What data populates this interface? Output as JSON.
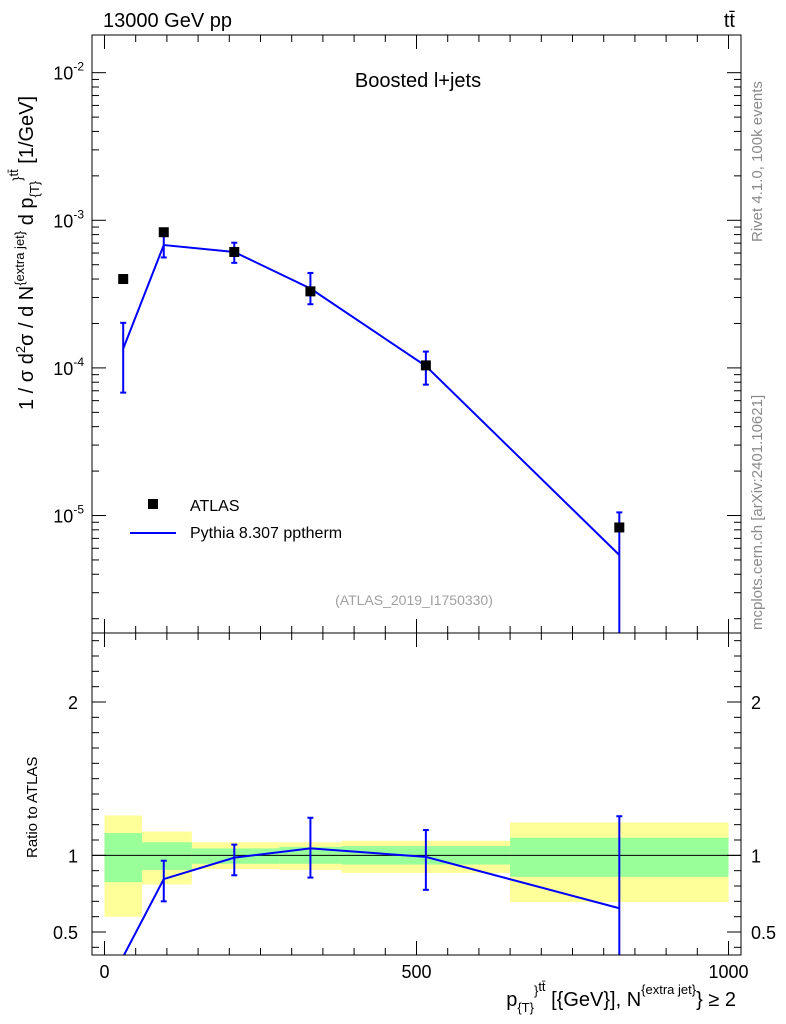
{
  "header": {
    "energy_label": "13000 GeV pp",
    "process_label": "tt̄"
  },
  "side": {
    "rivet_label": "Rivet 4.1.0,  100k events",
    "source_label": "mcplots.cern.ch [arXiv:2401.10621]"
  },
  "colors": {
    "data": "#000000",
    "mc": "#0000ff",
    "band_inner": "#99ff99",
    "band_outer": "#ffff99"
  },
  "chart_data": [
    {
      "type": "scatter",
      "title": "Boosted l+jets",
      "analysis_label": "(ATLAS_2019_I1750330)",
      "xlabel": "p_{T}^{tt̄} [{GeV}], N^{extra jet} ≥ 2",
      "ylabel": "1 / σ d²σ / d N^{extra jet} d p_{T}^{tt̄} [1/GeV]",
      "yscale": "log",
      "xlim": [
        -20,
        1020
      ],
      "ylim": [
        1.6e-06,
        0.018
      ],
      "ytick_labels": [
        "10^-5",
        "10^-4",
        "10^-3",
        "10^-2"
      ],
      "legend": [
        "ATLAS",
        "Pythia 8.307 pptherm"
      ],
      "series": [
        {
          "name": "ATLAS",
          "x": [
            30,
            95,
            208,
            330,
            515,
            825
          ],
          "y": [
            0.0004,
            0.00083,
            0.00061,
            0.00033,
            0.000104,
            8.3e-06
          ]
        },
        {
          "name": "Pythia 8.307 pptherm",
          "x": [
            30,
            95,
            208,
            330,
            515,
            825
          ],
          "y": [
            0.000135,
            0.00068,
            0.00061,
            0.000345,
            0.000103,
            5.4e-06
          ],
          "yerr_low": [
            6.7e-05,
            0.00012,
            9.5e-05,
            7.5e-05,
            2.6e-05,
            5.4e-06
          ],
          "yerr_high": [
            6.7e-05,
            0.00012,
            9.5e-05,
            9.5e-05,
            2.6e-05,
            5.1e-06
          ]
        }
      ]
    },
    {
      "type": "line",
      "ylabel": "Ratio to ATLAS",
      "xlim": [
        -20,
        1020
      ],
      "ylim": [
        0.35,
        2.45
      ],
      "xtick_labels": [
        "0",
        "500",
        "1000"
      ],
      "ytick_labels": [
        "0.5",
        "1",
        "2"
      ],
      "bands": {
        "edges": [
          0,
          60,
          140,
          280,
          380,
          650,
          1000
        ],
        "inner_low": [
          0.825,
          0.905,
          0.945,
          0.945,
          0.94,
          0.86
        ],
        "inner_high": [
          1.145,
          1.085,
          1.045,
          1.055,
          1.06,
          1.115
        ],
        "outer_low": [
          0.6,
          0.81,
          0.91,
          0.905,
          0.885,
          0.695
        ],
        "outer_high": [
          1.26,
          1.155,
          1.085,
          1.085,
          1.095,
          1.215
        ]
      },
      "series": [
        {
          "name": "Pythia 8.307 pptherm",
          "x": [
            30,
            95,
            208,
            330,
            515,
            825
          ],
          "y": [
            0.34,
            0.845,
            0.985,
            1.045,
            0.99,
            0.655
          ],
          "yerr_low": [
            0.17,
            0.145,
            0.115,
            0.19,
            0.215,
            0.655
          ],
          "yerr_high": [
            0.17,
            0.12,
            0.085,
            0.2,
            0.175,
            0.6
          ]
        }
      ]
    }
  ]
}
